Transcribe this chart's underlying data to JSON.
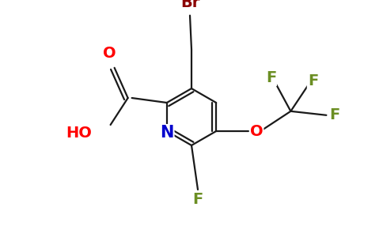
{
  "background_color": "#ffffff",
  "figure_size": [
    4.84,
    3.0
  ],
  "dpi": 100,
  "atom_colors": {
    "C": "#000000",
    "N": "#0000cd",
    "O": "#ff0000",
    "F": "#6b8e23",
    "Br": "#8b0000"
  },
  "bond_color": "#1a1a1a",
  "bond_lw": 1.6,
  "font_size": 14,
  "xlim": [
    0.0,
    4.84
  ],
  "ylim": [
    0.0,
    3.0
  ]
}
